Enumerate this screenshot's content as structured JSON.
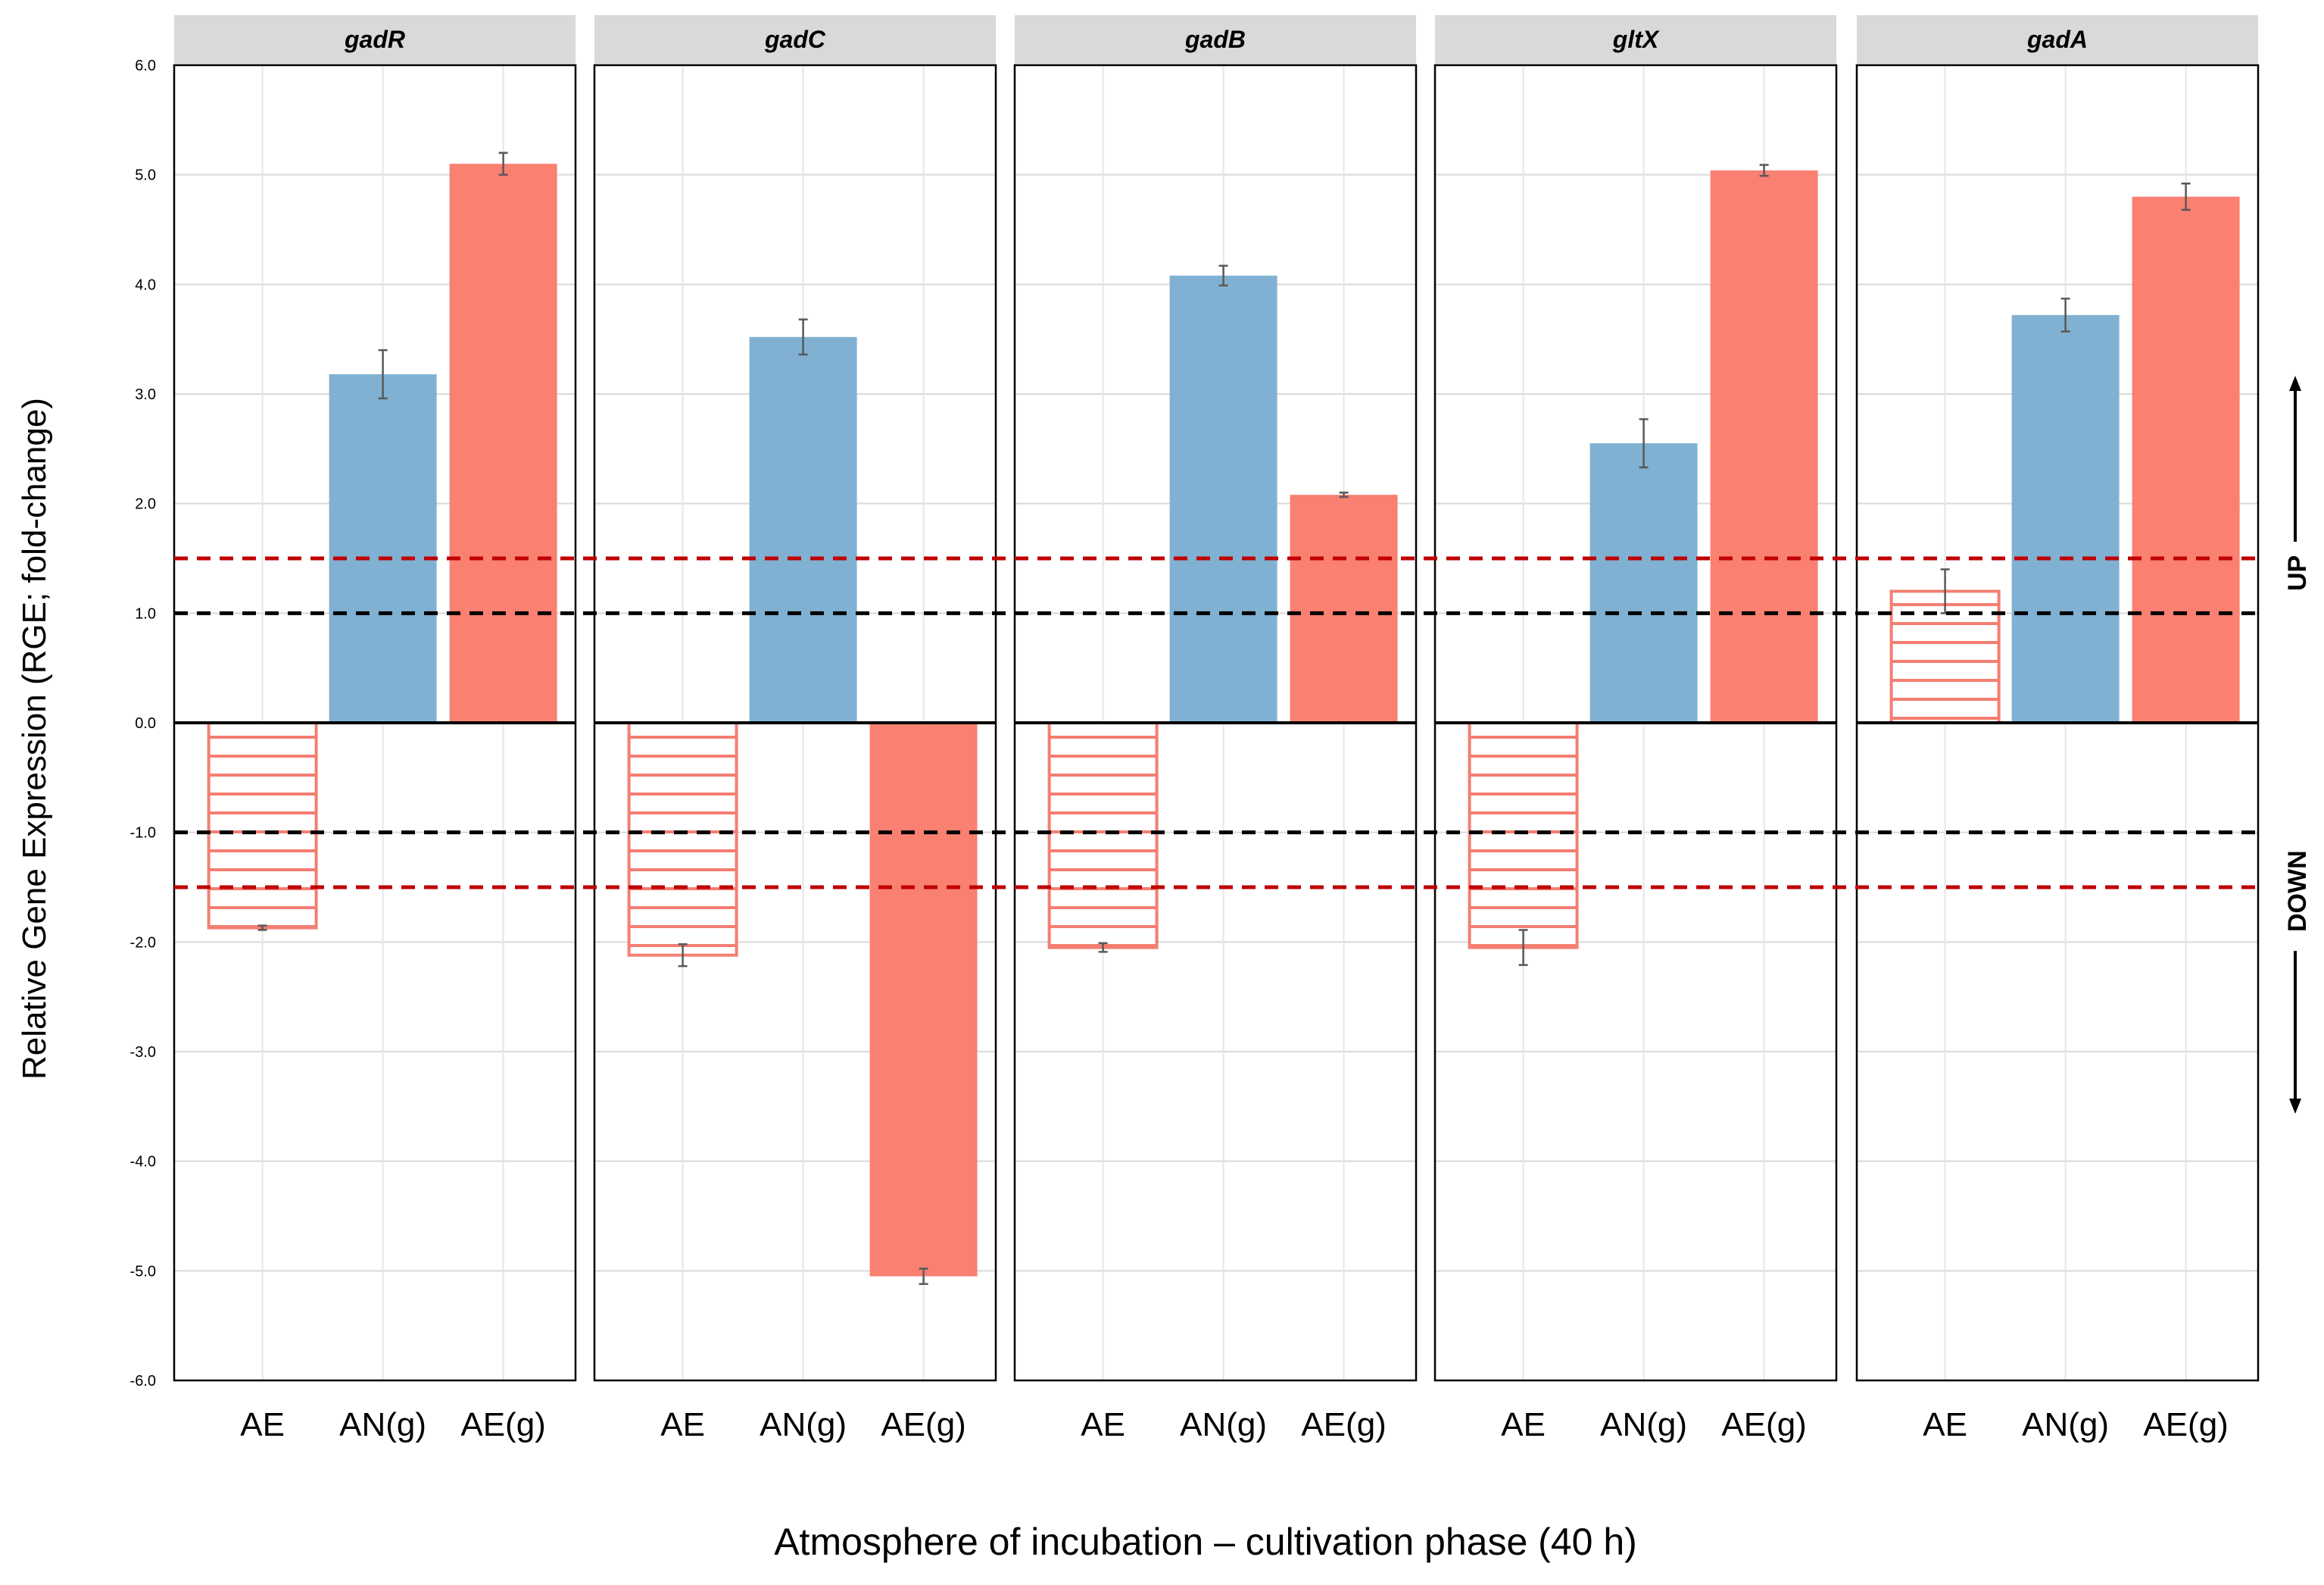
{
  "chart_data": {
    "type": "bar",
    "ylabel": "Relative Gene Expression (RGE; fold-change)",
    "xlabel": "Atmosphere of incubation – cultivation phase (40 h)",
    "ylim": [
      -6,
      6
    ],
    "yticks": [
      "-6.0",
      "-5.0",
      "-4.0",
      "-3.0",
      "-2.0",
      "-1.0",
      "0.0",
      "1.0",
      "2.0",
      "3.0",
      "4.0",
      "5.0",
      "6.0"
    ],
    "categories": [
      "AE",
      "AN(g)",
      "AE(g)"
    ],
    "category_styles": [
      "hatched",
      "solid",
      "solid"
    ],
    "colors": {
      "AE": "#f47e72",
      "AN(g)": "#80b1d3",
      "AE(g)": "#fa8072",
      "threshold_red": "#c00000",
      "threshold_black": "#000000",
      "panel_header": "#d9d9d9"
    },
    "thresholds": {
      "black": [
        1.0,
        -1.0
      ],
      "red": [
        1.5,
        -1.5
      ]
    },
    "panels": [
      {
        "gene": "gadR",
        "values": [
          -1.87,
          3.18,
          5.1
        ],
        "errors": [
          0.02,
          0.22,
          0.1
        ]
      },
      {
        "gene": "gadC",
        "values": [
          -2.12,
          3.52,
          -5.05
        ],
        "errors": [
          0.1,
          0.16,
          0.07
        ]
      },
      {
        "gene": "gadB",
        "values": [
          -2.05,
          4.08,
          2.08
        ],
        "errors": [
          0.04,
          0.09,
          0.02
        ]
      },
      {
        "gene": "gltX",
        "values": [
          -2.05,
          2.55,
          5.04
        ],
        "errors": [
          0.16,
          0.22,
          0.05
        ]
      },
      {
        "gene": "gadA",
        "values": [
          1.2,
          3.72,
          4.8
        ],
        "errors": [
          0.2,
          0.15,
          0.12
        ]
      }
    ],
    "direction_labels": {
      "up": "UP",
      "down": "DOWN"
    }
  }
}
